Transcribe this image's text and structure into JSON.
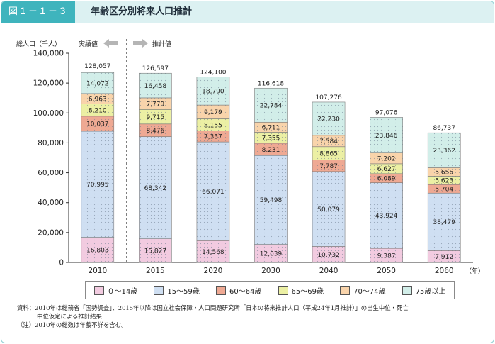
{
  "header": {
    "figure_number": "図１－１－３",
    "title": "年齢区分別将来人口推計"
  },
  "axis": {
    "y_label": "総人口（千人）",
    "actual_label": "実績値",
    "projection_label": "推計値",
    "x_unit": "（年）"
  },
  "chart_data": {
    "type": "bar",
    "stacked": true,
    "categories": [
      "2010",
      "2015",
      "2020",
      "2030",
      "2040",
      "2050",
      "2060"
    ],
    "ylim": [
      0,
      140000
    ],
    "yticks": [
      "0",
      "20,000",
      "40,000",
      "60,000",
      "80,000",
      "100,000",
      "120,000",
      "140,000"
    ],
    "ylabel": "総人口（千人）",
    "totals": [
      128057,
      126597,
      124100,
      116618,
      107276,
      97076,
      86737
    ],
    "total_labels": [
      "128,057",
      "126,597",
      "124,100",
      "116,618",
      "107,276",
      "97,076",
      "86,737"
    ],
    "series": [
      {
        "name": "０～14歳",
        "color": "#f2cbe0",
        "values": [
          16803,
          15827,
          14568,
          12039,
          10732,
          9387,
          7912
        ],
        "labels": [
          "16,803",
          "15,827",
          "14,568",
          "12,039",
          "10,732",
          "9,387",
          "7,912"
        ]
      },
      {
        "name": "15～59歳",
        "color": "#cfdff2",
        "values": [
          70995,
          68342,
          66071,
          59498,
          50079,
          43924,
          38479
        ],
        "labels": [
          "70,995",
          "68,342",
          "66,071",
          "59,498",
          "50,079",
          "43,924",
          "38,479"
        ]
      },
      {
        "name": "60～64歳",
        "color": "#efa993",
        "values": [
          10037,
          8476,
          7337,
          8231,
          7787,
          6089,
          5704
        ],
        "labels": [
          "10,037",
          "8,476",
          "7,337",
          "8,231",
          "7,787",
          "6,089",
          "5,704"
        ]
      },
      {
        "name": "65～69歳",
        "color": "#ecf0a4",
        "values": [
          8210,
          9715,
          8155,
          7355,
          8865,
          6627,
          5623
        ],
        "labels": [
          "8,210",
          "9,715",
          "8,155",
          "7,355",
          "8,865",
          "6,627",
          "5,623"
        ]
      },
      {
        "name": "70～74歳",
        "color": "#f9d4ab",
        "values": [
          6963,
          7779,
          9179,
          6711,
          7584,
          7202,
          5656
        ],
        "labels": [
          "6,963",
          "7,779",
          "9,179",
          "6,711",
          "7,584",
          "7,202",
          "5,656"
        ]
      },
      {
        "name": "75歳以上",
        "color": "#d2eee9",
        "values": [
          14072,
          16458,
          18790,
          22784,
          22230,
          23846,
          23362
        ],
        "labels": [
          "14,072",
          "16,458",
          "18,790",
          "22,784",
          "22,230",
          "23,846",
          "23,362"
        ]
      }
    ]
  },
  "notes": {
    "source_line1": "資料：2010年は総務省「国勢調査」、2015年以降は国立社会保障・人口問題研究所「日本の将来推計人口（平成24年1月推計）」の出生中位・死亡",
    "source_line2": "中位仮定による推計結果",
    "note_line": "（注）2010年の総数は年齢不詳を含む。"
  }
}
